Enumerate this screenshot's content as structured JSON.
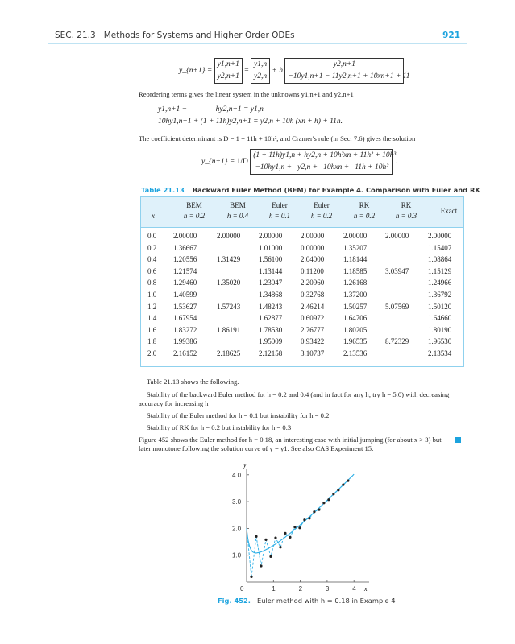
{
  "header": {
    "section": "SEC. 21.3   Methods for Systems and Higher Order ODEs",
    "page": "921"
  },
  "equations": {
    "eq1_lhs": "y_{n+1} =",
    "eq1_v1": [
      "y1,n+1",
      "y2,n+1"
    ],
    "eq1_v2": [
      "y1,n",
      "y2,n"
    ],
    "eq1_h": "+ h",
    "eq1_v3": [
      "y2,n+1",
      "−10y1,n+1 − 11y2,n+1 + 10xn+1 + 11"
    ],
    "text1": "Reordering terms gives the linear system in the unknowns y1,n+1 and y2,n+1",
    "sys1": "y1,n+1 −               hy2,n+1 = y1,n",
    "sys2": "10hy1,n+1 + (1 + 11h)y2,n+1 = y2,n + 10h (xn + h) + 11h.",
    "text2": "The coefficient determinant is D = 1 + 11h + 10h², and Cramer's rule (in Sec. 7.6) gives the solution",
    "eq3_lhs": "y_{n+1} =",
    "eq3_frac": "1/D",
    "eq3_rows": [
      "(1 + 11h)y1,n + hy2,n + 10h²xn + 11h² + 10h³",
      "−10hy1,n +   y2,n +   10hxn +   11h + 10h²"
    ]
  },
  "table": {
    "number": "Table 21.13",
    "title": "Backward Euler Method (BEM) for Example 4. Comparison with Euler and RK",
    "headers": [
      [
        "",
        "x"
      ],
      [
        "BEM",
        "h = 0.2"
      ],
      [
        "BEM",
        "h = 0.4"
      ],
      [
        "Euler",
        "h = 0.1"
      ],
      [
        "Euler",
        "h = 0.2"
      ],
      [
        "RK",
        "h = 0.2"
      ],
      [
        "RK",
        "h = 0.3"
      ],
      [
        "Exact",
        ""
      ]
    ],
    "rows": [
      [
        "0.0",
        "2.00000",
        "2.00000",
        "2.00000",
        "2.00000",
        "2.00000",
        "2.00000",
        "2.00000"
      ],
      [
        "0.2",
        "1.36667",
        "",
        "1.01000",
        "0.00000",
        "1.35207",
        "",
        "1.15407"
      ],
      [
        "0.4",
        "1.20556",
        "1.31429",
        "1.56100",
        "2.04000",
        "1.18144",
        "",
        "1.08864"
      ],
      [
        "0.6",
        "1.21574",
        "",
        "1.13144",
        "0.11200",
        "1.18585",
        "3.03947",
        "1.15129"
      ],
      [
        "0.8",
        "1.29460",
        "1.35020",
        "1.23047",
        "2.20960",
        "1.26168",
        "",
        "1.24966"
      ],
      [
        "1.0",
        "1.40599",
        "",
        "1.34868",
        "0.32768",
        "1.37200",
        "",
        "1.36792"
      ],
      [
        "1.2",
        "1.53627",
        "1.57243",
        "1.48243",
        "2.46214",
        "1.50257",
        "5.07569",
        "1.50120"
      ],
      [
        "1.4",
        "1.67954",
        "",
        "1.62877",
        "0.60972",
        "1.64706",
        "",
        "1.64660"
      ],
      [
        "1.6",
        "1.83272",
        "1.86191",
        "1.78530",
        "2.76777",
        "1.80205",
        "",
        "1.80190"
      ],
      [
        "1.8",
        "1.99386",
        "",
        "1.95009",
        "0.93422",
        "1.96535",
        "8.72329",
        "1.96530"
      ],
      [
        "2.0",
        "2.16152",
        "2.18625",
        "2.12158",
        "3.10737",
        "2.13536",
        "",
        "2.13534"
      ]
    ]
  },
  "body": [
    "Table 21.13 shows the following.",
    "Stability of the backward Euler method for h = 0.2 and 0.4 (and in fact for any h; try h = 5.0) with decreasing",
    "accuracy for increasing h",
    "Stability of the Euler method for h = 0.1 but instability for h = 0.2",
    "Stability of RK for h = 0.2 but instability for h = 0.3",
    "Figure 452 shows the Euler method for h = 0.18, an interesting case with initial jumping (for about x > 3) but",
    "later monotone following the solution curve of y = y1. See also CAS Experiment 15."
  ],
  "figure": {
    "number": "Fig. 452.",
    "caption": "Euler method with h = 0.18 in Example 4",
    "chart_data": {
      "type": "line",
      "xlabel": "x",
      "ylabel": "y",
      "xlim": [
        0,
        4.5
      ],
      "ylim": [
        0,
        4.3
      ],
      "x_ticks": [
        "0",
        "1",
        "2",
        "3",
        "4"
      ],
      "y_ticks": [
        "1.0",
        "2.0",
        "3.0",
        "4.0"
      ],
      "series": [
        {
          "kind": "euler-points-dashed",
          "x": [
            0,
            0.18,
            0.36,
            0.54,
            0.72,
            0.9,
            1.08,
            1.26,
            1.44,
            1.62,
            1.8,
            1.98,
            2.16,
            2.34,
            2.52,
            2.7,
            2.88,
            3.06,
            3.24,
            3.42,
            3.6,
            3.78
          ],
          "y": [
            2.0,
            0.2,
            1.7,
            0.6,
            1.58,
            0.95,
            1.65,
            1.3,
            1.82,
            1.67,
            2.05,
            2.02,
            2.32,
            2.38,
            2.62,
            2.7,
            2.95,
            3.07,
            3.28,
            3.43,
            3.63,
            3.78
          ]
        },
        {
          "kind": "solution-curve"
        }
      ],
      "colors": {
        "curve": "#2aaee6",
        "points": "#222222"
      }
    }
  }
}
